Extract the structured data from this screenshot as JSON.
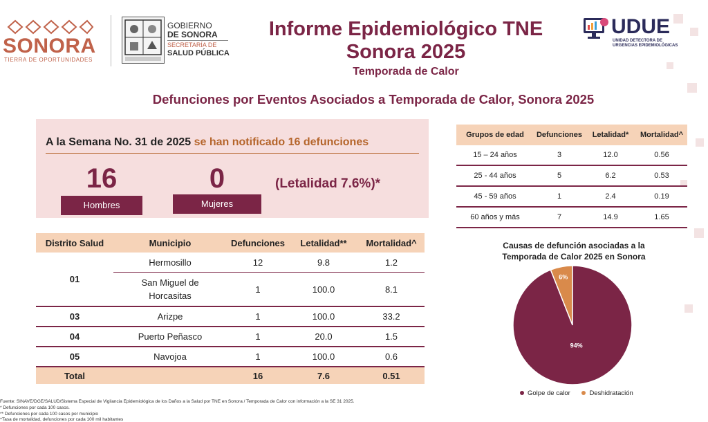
{
  "header": {
    "sonora_logo": "SONORA",
    "sonora_tagline": "TIERRA DE OPORTUNIDADES",
    "gov_line1": "GOBIERNO",
    "gov_line2": "DE SONORA",
    "gov_line3": "SECRETARÍA DE",
    "gov_line4": "SALUD PÚBLICA",
    "title_line1": "Informe Epidemiológico TNE",
    "title_line2": "Sonora 2025",
    "subtitle": "Temporada de Calor",
    "udue_logo": "UDUE",
    "udue_sub1": "UNIDAD DETECTORA DE",
    "udue_sub2": "URGENCIAS EPIDEMIOLÓGICAS",
    "brand_color": "#7b2546",
    "accent_color": "#b5652b"
  },
  "section_title": "Defunciones por Eventos Asociados a Temporada de Calor, Sonora 2025",
  "summary": {
    "headline_part1": "A la Semana No. 31 de 2025 ",
    "headline_part2": "se han notificado 16 defunciones",
    "men_count": "16",
    "men_label": "Hombres",
    "women_count": "0",
    "women_label": "Mujeres",
    "lethality": "(Letalidad 7.6%)*"
  },
  "district_table": {
    "headers": [
      "Distrito Salud",
      "Municipio",
      "Defunciones",
      "Letalidad**",
      "Mortalidad^"
    ],
    "groups": [
      {
        "district": "01",
        "rows": [
          {
            "municipio": "Hermosillo",
            "defunciones": "12",
            "letalidad": "9.8",
            "mortalidad": "1.2"
          },
          {
            "municipio": "San Miguel de Horcasitas",
            "defunciones": "1",
            "letalidad": "100.0",
            "mortalidad": "8.1"
          }
        ]
      },
      {
        "district": "03",
        "rows": [
          {
            "municipio": "Arizpe",
            "defunciones": "1",
            "letalidad": "100.0",
            "mortalidad": "33.2"
          }
        ]
      },
      {
        "district": "04",
        "rows": [
          {
            "municipio": "Puerto Peñasco",
            "defunciones": "1",
            "letalidad": "20.0",
            "mortalidad": "1.5"
          }
        ]
      },
      {
        "district": "05",
        "rows": [
          {
            "municipio": "Navojoa",
            "defunciones": "1",
            "letalidad": "100.0",
            "mortalidad": "0.6"
          }
        ]
      }
    ],
    "total": {
      "label": "Total",
      "defunciones": "16",
      "letalidad": "7.6",
      "mortalidad": "0.51"
    }
  },
  "age_table": {
    "headers": [
      "Grupos de edad",
      "Defunciones",
      "Letalidad*",
      "Mortalidad^"
    ],
    "rows": [
      {
        "group": "15 – 24 años",
        "defunciones": "3",
        "letalidad": "12.0",
        "mortalidad": "0.56"
      },
      {
        "group": "25 - 44 años",
        "defunciones": "5",
        "letalidad": "6.2",
        "mortalidad": "0.53"
      },
      {
        "group": "45 - 59 años",
        "defunciones": "1",
        "letalidad": "2.4",
        "mortalidad": "0.19"
      },
      {
        "group": "60 años y más",
        "defunciones": "7",
        "letalidad": "14.9",
        "mortalidad": "1.65"
      }
    ]
  },
  "chart_data": {
    "type": "pie",
    "title": "Causas de defunción asociadas a la Temporada de Calor 2025 en Sonora",
    "title_line1": "Causas de defunción asociadas a la",
    "title_line2": "Temporada de Calor 2025 en Sonora",
    "categories": [
      "Golpe de calor",
      "Deshidratación"
    ],
    "values": [
      94,
      6
    ],
    "labels": [
      "94%",
      "6%"
    ],
    "colors": [
      "#7b2546",
      "#d98a4b"
    ],
    "legend_position": "bottom"
  },
  "footnotes": [
    "Fuente: SINAVE/DGE/SALUD/Sistema Especial de Vigilancia Epidemiológica de los Daños a la Salud por TNE en Sonora / Temporada de Calor con información a la SE 31 2025.",
    "* Defunciones por cada 100 casos.",
    "** Defunciones por cada 100 casos por municipio",
    "^Tasa de mortalidad, defunciones por cada 100 mil habitantes"
  ]
}
